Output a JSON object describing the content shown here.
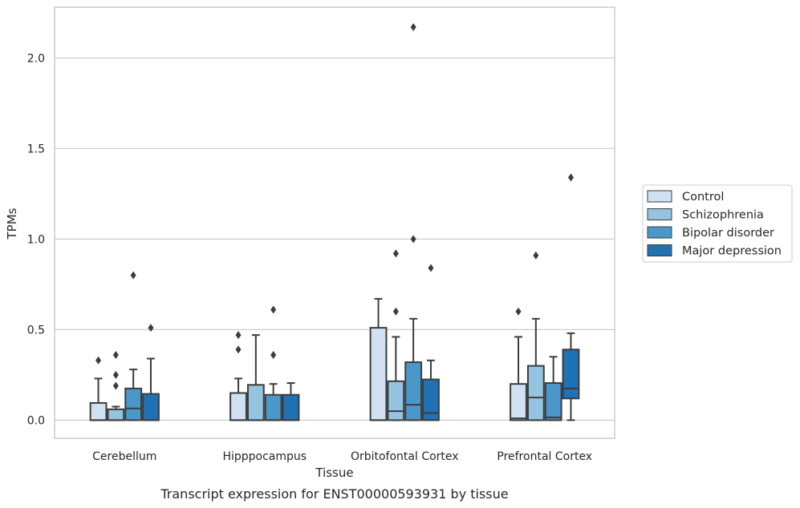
{
  "caption": "Transcript expression for ENST00000593931 by tissue",
  "chart_data": {
    "type": "box",
    "xlabel": "Tissue",
    "ylabel": "TPMs",
    "ylim": [
      -0.1,
      2.28
    ],
    "yticks": [
      0.0,
      0.5,
      1.0,
      1.5,
      2.0
    ],
    "ytick_labels": [
      "0.0",
      "0.5",
      "1.0",
      "1.5",
      "2.0"
    ],
    "grid": "horizontal",
    "legend_position": "right",
    "categories": [
      "Cerebellum",
      "Hipppocampus",
      "Orbitofontal Cortex",
      "Prefrontal Cortex"
    ],
    "series": [
      {
        "name": "Control",
        "color": "#d0e1f2",
        "boxes": [
          {
            "whislo": 0.0,
            "q1": 0.0,
            "med": 0.0,
            "q3": 0.095,
            "whishi": 0.23,
            "fliers": [
              0.33
            ]
          },
          {
            "whislo": 0.0,
            "q1": 0.0,
            "med": 0.0,
            "q3": 0.15,
            "whishi": 0.23,
            "fliers": [
              0.39,
              0.47
            ]
          },
          {
            "whislo": 0.0,
            "q1": 0.0,
            "med": 0.0,
            "q3": 0.51,
            "whishi": 0.67,
            "fliers": []
          },
          {
            "whislo": 0.0,
            "q1": 0.0,
            "med": 0.01,
            "q3": 0.2,
            "whishi": 0.46,
            "fliers": [
              0.6
            ]
          }
        ]
      },
      {
        "name": "Schizophrenia",
        "color": "#94c4df",
        "boxes": [
          {
            "whislo": 0.0,
            "q1": 0.0,
            "med": 0.0,
            "q3": 0.06,
            "whishi": 0.075,
            "fliers": [
              0.19,
              0.25,
              0.36
            ]
          },
          {
            "whislo": 0.0,
            "q1": 0.0,
            "med": 0.0,
            "q3": 0.195,
            "whishi": 0.47,
            "fliers": []
          },
          {
            "whislo": 0.0,
            "q1": 0.0,
            "med": 0.05,
            "q3": 0.215,
            "whishi": 0.46,
            "fliers": [
              0.6,
              0.92
            ]
          },
          {
            "whislo": 0.0,
            "q1": 0.0,
            "med": 0.125,
            "q3": 0.3,
            "whishi": 0.56,
            "fliers": [
              0.91
            ]
          }
        ]
      },
      {
        "name": "Bipolar disorder",
        "color": "#4a98c9",
        "boxes": [
          {
            "whislo": 0.0,
            "q1": 0.0,
            "med": 0.065,
            "q3": 0.175,
            "whishi": 0.28,
            "fliers": [
              0.8
            ]
          },
          {
            "whislo": 0.0,
            "q1": 0.0,
            "med": 0.0,
            "q3": 0.14,
            "whishi": 0.2,
            "fliers": [
              0.36,
              0.61
            ]
          },
          {
            "whislo": 0.0,
            "q1": 0.0,
            "med": 0.085,
            "q3": 0.32,
            "whishi": 0.56,
            "fliers": [
              1.0,
              2.17
            ]
          },
          {
            "whislo": 0.0,
            "q1": 0.0,
            "med": 0.015,
            "q3": 0.205,
            "whishi": 0.35,
            "fliers": []
          }
        ]
      },
      {
        "name": "Major depression",
        "color": "#2171b5",
        "boxes": [
          {
            "whislo": 0.0,
            "q1": 0.0,
            "med": 0.0,
            "q3": 0.145,
            "whishi": 0.34,
            "fliers": [
              0.51
            ]
          },
          {
            "whislo": 0.0,
            "q1": 0.0,
            "med": 0.0,
            "q3": 0.14,
            "whishi": 0.205,
            "fliers": []
          },
          {
            "whislo": 0.0,
            "q1": 0.0,
            "med": 0.04,
            "q3": 0.225,
            "whishi": 0.33,
            "fliers": [
              0.84
            ]
          },
          {
            "whislo": 0.0,
            "q1": 0.12,
            "med": 0.175,
            "q3": 0.39,
            "whishi": 0.48,
            "fliers": [
              1.34
            ]
          }
        ]
      }
    ]
  }
}
